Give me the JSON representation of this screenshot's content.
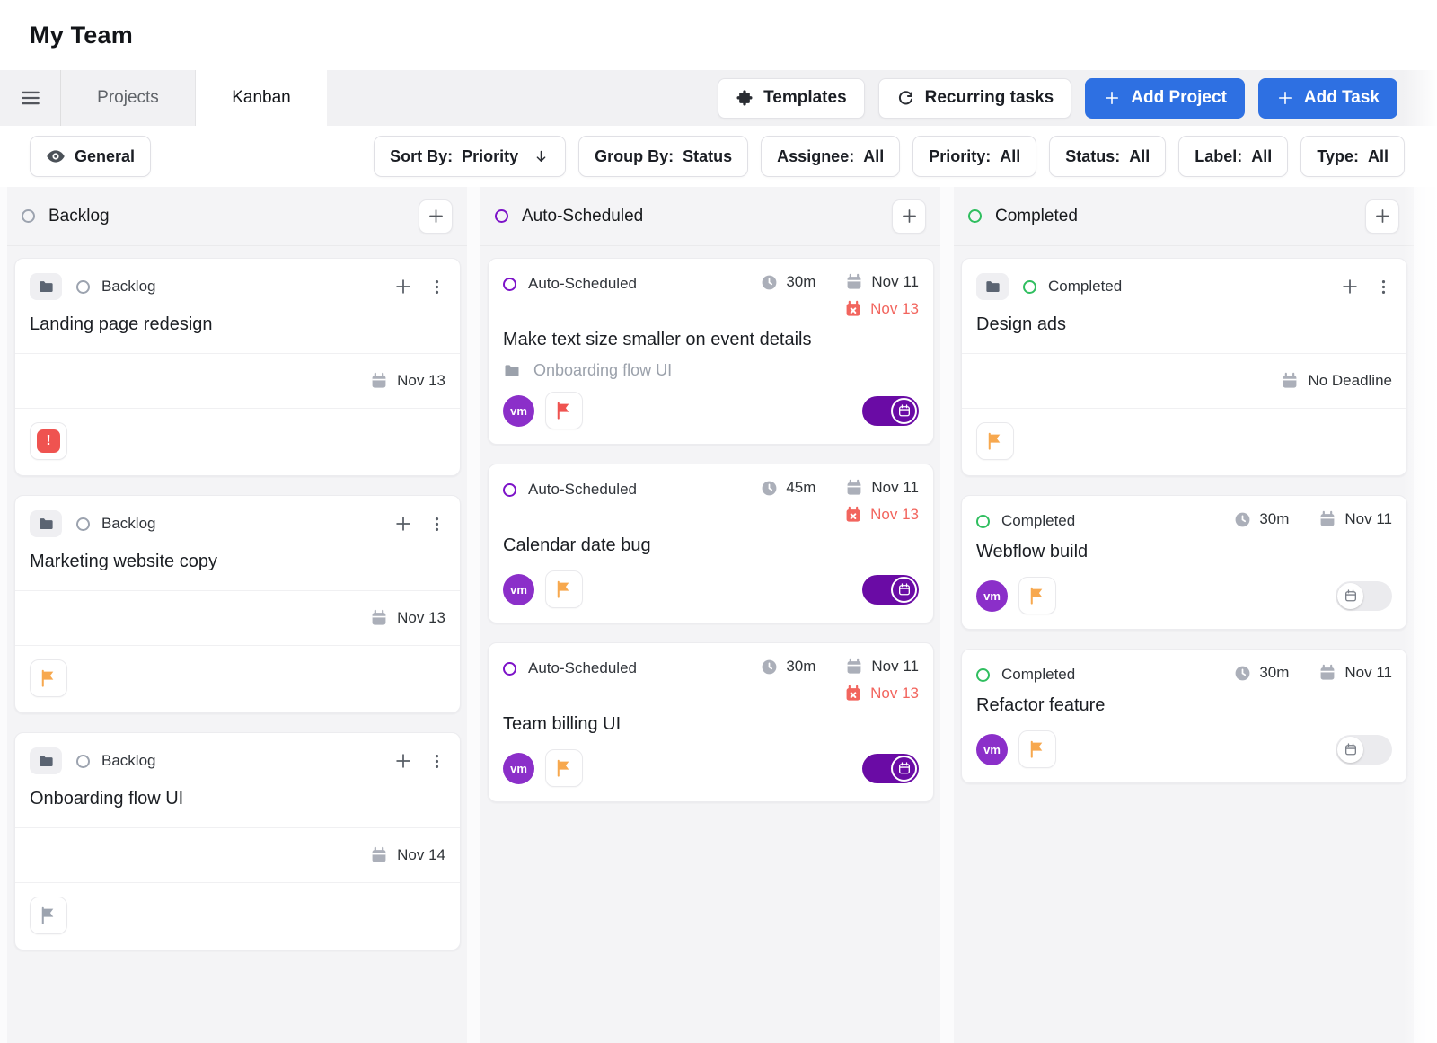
{
  "page": {
    "title": "My Team"
  },
  "tab_bar": {
    "tabs": [
      {
        "label": "Projects",
        "active": false
      },
      {
        "label": "Kanban",
        "active": true
      }
    ],
    "actions": {
      "templates": {
        "label": "Templates",
        "icon": "puzzle-icon"
      },
      "recurring": {
        "label": "Recurring tasks",
        "icon": "recurring-icon"
      },
      "add_project": {
        "label": "Add Project",
        "icon": "plus-icon"
      },
      "add_task": {
        "label": "Add Task",
        "icon": "plus-icon"
      }
    }
  },
  "filter_bar": {
    "view": {
      "label": "General",
      "icon": "eye-icon"
    },
    "sort_by": {
      "label": "Sort By:",
      "value": "Priority",
      "icon": "arrow-down-icon"
    },
    "group_by": {
      "label": "Group By:",
      "value": "Status"
    },
    "assignee": {
      "label": "Assignee:",
      "value": "All"
    },
    "priority": {
      "label": "Priority:",
      "value": "All"
    },
    "status": {
      "label": "Status:",
      "value": "All"
    },
    "label": {
      "label": "Label:",
      "value": "All"
    },
    "type": {
      "label": "Type:",
      "value": "All"
    }
  },
  "board": {
    "columns": [
      {
        "name": "Backlog",
        "color": "#9ca3af",
        "cards": [
          {
            "kind": "project",
            "status": "Backlog",
            "status_color": "#9ca3af",
            "title": "Landing page redesign",
            "deadline": "Nov 13",
            "badge": "exclaim"
          },
          {
            "kind": "project",
            "status": "Backlog",
            "status_color": "#9ca3af",
            "title": "Marketing website copy",
            "deadline": "Nov 13",
            "badge": "flag-orange"
          },
          {
            "kind": "project",
            "status": "Backlog",
            "status_color": "#9ca3af",
            "title": "Onboarding flow UI",
            "deadline": "Nov 14",
            "badge": "flag-gray"
          }
        ]
      },
      {
        "name": "Auto-Scheduled",
        "color": "#7c12c8",
        "cards": [
          {
            "kind": "task",
            "status": "Auto-Scheduled",
            "status_color": "#7c12c8",
            "duration": "30m",
            "date": "Nov 11",
            "overdue": "Nov 13",
            "title": "Make text size smaller on event details",
            "project": "Onboarding flow UI",
            "assignee": "vm",
            "flag": "red",
            "toggle": "on"
          },
          {
            "kind": "task",
            "status": "Auto-Scheduled",
            "status_color": "#7c12c8",
            "duration": "45m",
            "date": "Nov 11",
            "overdue": "Nov 13",
            "title": "Calendar date bug",
            "assignee": "vm",
            "flag": "orange",
            "toggle": "on"
          },
          {
            "kind": "task",
            "status": "Auto-Scheduled",
            "status_color": "#7c12c8",
            "duration": "30m",
            "date": "Nov 11",
            "overdue": "Nov 13",
            "title": "Team billing UI",
            "assignee": "vm",
            "flag": "orange",
            "toggle": "on"
          }
        ]
      },
      {
        "name": "Completed",
        "color": "#2fbe5f",
        "cards": [
          {
            "kind": "project",
            "status": "Completed",
            "status_color": "#2fbe5f",
            "title": "Design ads",
            "deadline": "No Deadline",
            "badge": "flag-orange"
          },
          {
            "kind": "task",
            "status": "Completed",
            "status_color": "#2fbe5f",
            "duration": "30m",
            "date": "Nov 11",
            "title": "Webflow build",
            "assignee": "vm",
            "flag": "orange",
            "toggle": "off"
          },
          {
            "kind": "task",
            "status": "Completed",
            "status_color": "#2fbe5f",
            "duration": "30m",
            "date": "Nov 11",
            "title": "Refactor feature",
            "assignee": "vm",
            "flag": "orange",
            "toggle": "off"
          }
        ]
      }
    ]
  },
  "colors": {
    "accent_blue": "#2e70e2",
    "toggle_purple": "#6a0ba5",
    "avatar_purple": "#8b2fc9",
    "red": "#ef5350",
    "overdue_text": "#f2655e",
    "orange": "#f7a84e",
    "gray": "#9ca3af"
  },
  "icons": [
    "hamburger-icon",
    "puzzle-icon",
    "recurring-icon",
    "plus-icon",
    "eye-icon",
    "arrow-down-icon",
    "folder-icon",
    "calendar-icon",
    "calendar-x-icon",
    "clock-icon",
    "flag-icon",
    "exclamation-icon",
    "kebab-icon",
    "toggle-calendar-icon",
    "status-circle-icon"
  ]
}
